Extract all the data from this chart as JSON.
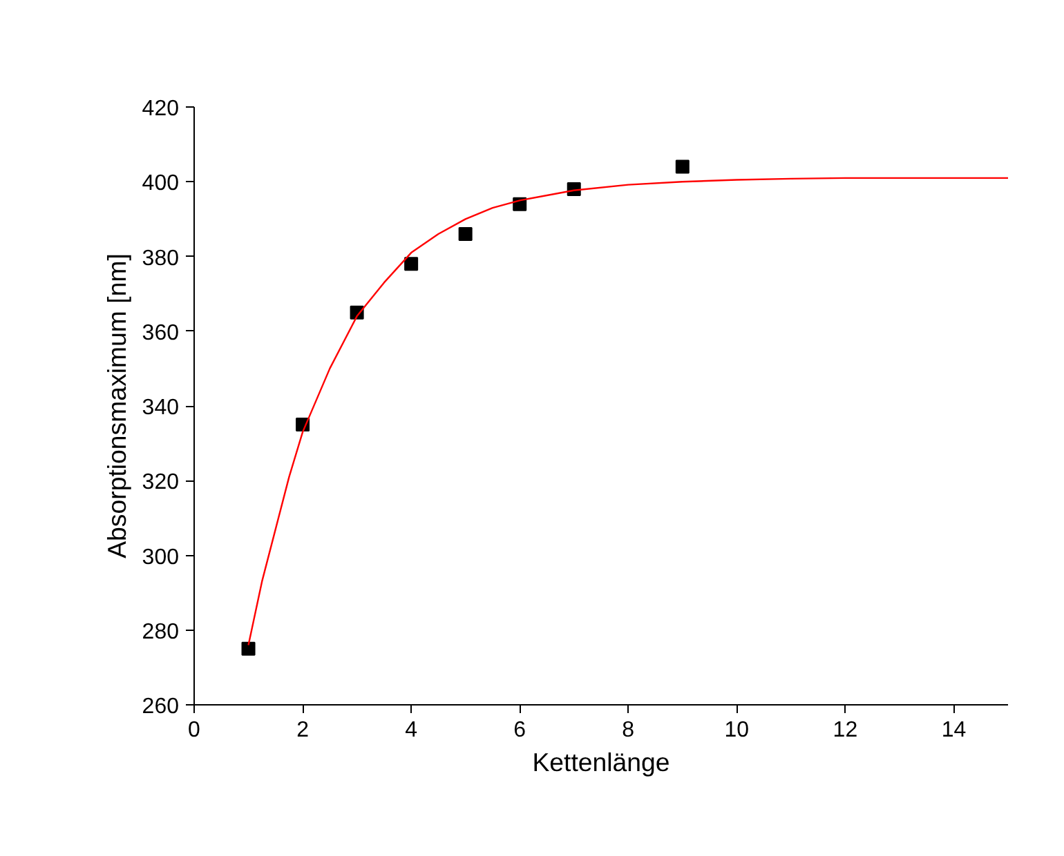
{
  "chart_data": {
    "type": "scatter",
    "xlabel": "Kettenlänge",
    "ylabel": "Absorptionsmaximum [nm]",
    "xlim": [
      0,
      15
    ],
    "ylim": [
      260,
      420
    ],
    "xticks": [
      0,
      2,
      4,
      6,
      8,
      10,
      12,
      14
    ],
    "yticks": [
      260,
      280,
      300,
      320,
      340,
      360,
      380,
      400,
      420
    ],
    "grid": false,
    "marker": "square",
    "series": [
      {
        "color": "#000000",
        "x": [
          1,
          2,
          3,
          4,
          5,
          6,
          7,
          9
        ],
        "values": [
          275,
          335,
          365,
          378,
          386,
          394,
          398,
          404
        ]
      },
      {
        "type": "line",
        "color": "#ff0000",
        "line_style": "solid",
        "marker": "none",
        "x": [
          1,
          1.25,
          1.5,
          1.75,
          2,
          2.5,
          3,
          3.5,
          4,
          4.5,
          5,
          5.5,
          6,
          7,
          8,
          9,
          10,
          11,
          12,
          13,
          14,
          15
        ],
        "values": [
          276,
          293,
          307,
          321,
          333,
          350,
          364,
          373,
          381,
          386,
          390,
          393,
          395,
          397.7,
          399.2,
          400,
          400.5,
          400.8,
          401,
          401,
          401,
          401
        ]
      }
    ]
  }
}
